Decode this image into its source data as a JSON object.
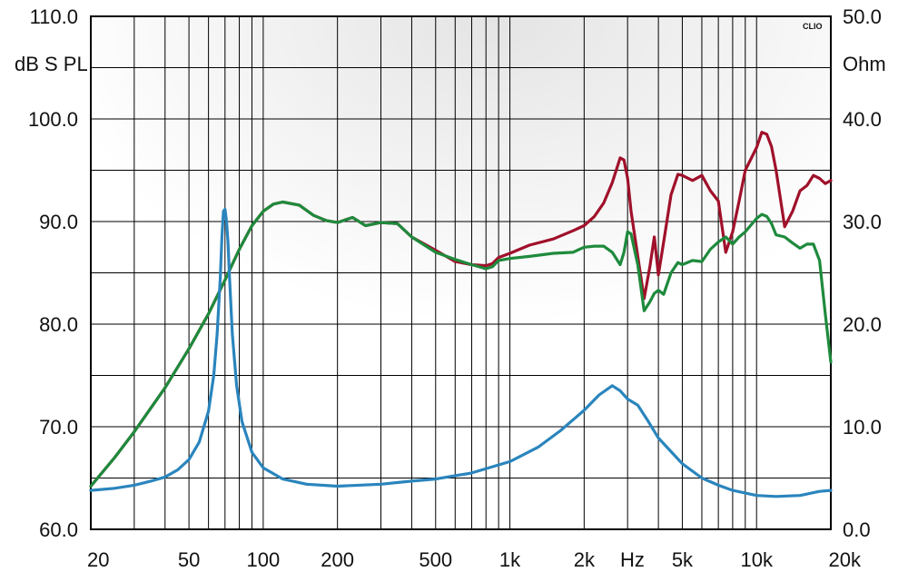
{
  "chart_data": {
    "type": "line",
    "title": "",
    "brand": "CLIO",
    "x_scale": "log",
    "xlim": [
      20,
      20000
    ],
    "x_tick_labels": [
      {
        "value": 20,
        "label": "20"
      },
      {
        "value": 50,
        "label": "50"
      },
      {
        "value": 100,
        "label": "100"
      },
      {
        "value": 200,
        "label": "200"
      },
      {
        "value": 500,
        "label": "500"
      },
      {
        "value": 1000,
        "label": "1k"
      },
      {
        "value": 2000,
        "label": "2k"
      },
      {
        "value": 5000,
        "label": "5k"
      },
      {
        "value": 10000,
        "label": "10k"
      },
      {
        "value": 20000,
        "label": "20k"
      }
    ],
    "xlabel": "Hz",
    "ylabel_left": "dB S PL",
    "ylim_left": [
      60,
      110
    ],
    "y_left_ticks": [
      "60.0",
      "70.0",
      "80.0",
      "90.0",
      "100.0",
      "110.0"
    ],
    "ylabel_right": "Ohm",
    "ylim_right": [
      0,
      50
    ],
    "y_right_ticks": [
      "0.0",
      "10.0",
      "20.0",
      "30.0",
      "40.0",
      "50.0"
    ],
    "grid": true,
    "series": [
      {
        "color": "#a0102a",
        "axis": "left",
        "x": [
          20,
          25,
          30,
          40,
          50,
          60,
          70,
          80,
          90,
          100,
          110,
          120,
          140,
          160,
          180,
          200,
          230,
          260,
          300,
          350,
          400,
          500,
          600,
          700,
          800,
          850,
          900,
          1000,
          1200,
          1500,
          1800,
          2000,
          2200,
          2400,
          2600,
          2800,
          2900,
          3000,
          3100,
          3300,
          3500,
          3700,
          3850,
          4000,
          4200,
          4500,
          4800,
          5000,
          5500,
          6000,
          6500,
          7000,
          7500,
          8000,
          8500,
          9000,
          10000,
          10500,
          11000,
          11500,
          12000,
          13000,
          14000,
          15000,
          16000,
          17000,
          18000,
          19000,
          20000
        ],
        "y": [
          64.2,
          67.0,
          69.5,
          73.8,
          77.6,
          81.0,
          84.3,
          87.3,
          89.6,
          91.0,
          91.7,
          91.9,
          91.6,
          90.6,
          90.1,
          89.9,
          90.4,
          89.6,
          89.9,
          89.8,
          88.5,
          87.2,
          86.1,
          85.8,
          85.7,
          85.9,
          86.5,
          86.9,
          87.7,
          88.3,
          89.1,
          89.6,
          90.5,
          91.8,
          93.8,
          96.2,
          96.0,
          94.2,
          91.0,
          86.6,
          82.5,
          85.7,
          88.5,
          84.8,
          88.0,
          92.6,
          94.6,
          94.5,
          94.0,
          94.5,
          93.0,
          92.0,
          87.0,
          89.0,
          92.0,
          95.0,
          97.2,
          98.7,
          98.5,
          97.3,
          95.0,
          89.5,
          91.0,
          93.0,
          93.5,
          94.5,
          94.2,
          93.7,
          94.0
        ]
      },
      {
        "color": "#1e8a3c",
        "axis": "left",
        "x": [
          20,
          25,
          30,
          40,
          50,
          60,
          70,
          80,
          90,
          100,
          110,
          120,
          140,
          160,
          180,
          200,
          230,
          260,
          300,
          350,
          400,
          500,
          600,
          700,
          800,
          850,
          900,
          1000,
          1200,
          1500,
          1800,
          2000,
          2200,
          2400,
          2600,
          2800,
          2900,
          3000,
          3100,
          3300,
          3500,
          3700,
          3850,
          4000,
          4200,
          4500,
          4800,
          5000,
          5500,
          6000,
          6500,
          7000,
          7500,
          8000,
          8500,
          9000,
          10000,
          10500,
          11000,
          11500,
          12000,
          13000,
          14000,
          15000,
          16000,
          17000,
          18000,
          19000,
          20000
        ],
        "y": [
          64.2,
          67.0,
          69.5,
          73.8,
          77.6,
          81.0,
          84.3,
          87.3,
          89.6,
          91.0,
          91.7,
          91.9,
          91.6,
          90.6,
          90.1,
          89.9,
          90.4,
          89.6,
          89.9,
          89.8,
          88.5,
          87.0,
          86.3,
          85.8,
          85.4,
          85.6,
          86.2,
          86.4,
          86.6,
          86.9,
          87.0,
          87.5,
          87.6,
          87.6,
          87.0,
          85.8,
          87.0,
          89.0,
          88.8,
          85.8,
          81.3,
          82.2,
          83.0,
          83.3,
          82.9,
          85.0,
          86.0,
          85.8,
          86.2,
          86.1,
          87.3,
          88.0,
          88.5,
          87.8,
          88.5,
          89.0,
          90.3,
          90.7,
          90.5,
          89.8,
          88.7,
          88.5,
          87.9,
          87.4,
          87.8,
          87.8,
          86.2,
          81.0,
          76.3
        ]
      },
      {
        "color": "#2a85bd",
        "axis": "right",
        "x": [
          20,
          25,
          30,
          35,
          40,
          45,
          50,
          55,
          60,
          63,
          65,
          67,
          68,
          69,
          70,
          71,
          72,
          73,
          75,
          78,
          82,
          90,
          100,
          120,
          150,
          200,
          300,
          400,
          500,
          700,
          1000,
          1300,
          1600,
          2000,
          2300,
          2600,
          2800,
          3000,
          3300,
          3600,
          4000,
          5000,
          6000,
          7000,
          8000,
          10000,
          12000,
          15000,
          18000,
          20000
        ],
        "y": [
          3.8,
          4.0,
          4.3,
          4.7,
          5.1,
          5.8,
          6.8,
          8.5,
          11.5,
          15.0,
          19.0,
          24.5,
          28.5,
          31.0,
          31.2,
          30.0,
          28.0,
          24.5,
          19.0,
          14.0,
          10.5,
          7.5,
          6.0,
          4.9,
          4.4,
          4.2,
          4.4,
          4.7,
          4.9,
          5.5,
          6.6,
          8.0,
          9.6,
          11.6,
          13.1,
          14.0,
          13.5,
          12.7,
          12.1,
          10.7,
          8.9,
          6.4,
          5.0,
          4.3,
          3.8,
          3.3,
          3.2,
          3.3,
          3.7,
          3.8
        ]
      }
    ]
  }
}
